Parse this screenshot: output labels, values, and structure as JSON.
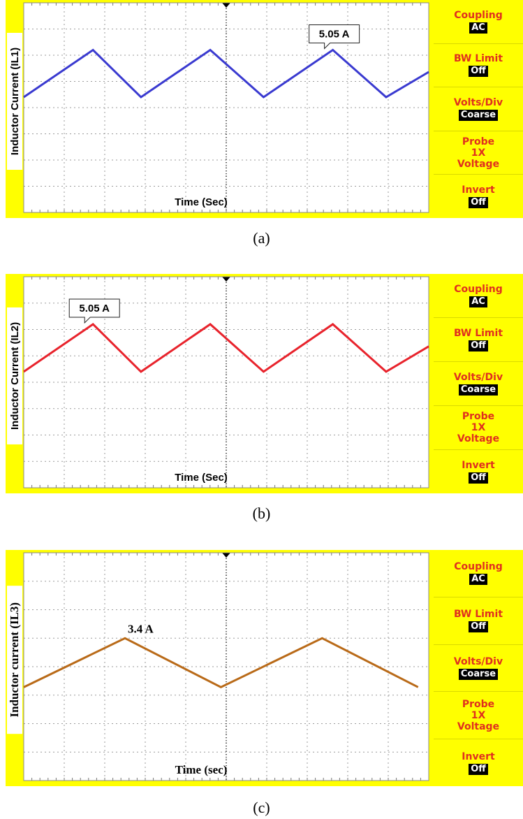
{
  "menu": {
    "coupling_label": "Coupling",
    "coupling_value": "AC",
    "bw_label": "BW Limit",
    "bw_value": "Off",
    "volts_label": "Volts/Div",
    "volts_value": "Coarse",
    "probe_label": "Probe",
    "probe_value": "1X",
    "probe_type": "Voltage",
    "invert_label": "Invert",
    "invert_value": "Off"
  },
  "chart_data": [
    {
      "type": "line",
      "panel": "a",
      "caption": "(a)",
      "ylabel": "Inductor Current (IL1)",
      "xlabel": "Time (Sec)",
      "annotation": "5.05 A",
      "color": "#3a3ad0",
      "x": [
        0,
        1.3,
        2.2,
        3.5,
        4.5,
        5.8,
        6.8,
        7.6
      ],
      "y": [
        5.5,
        7.75,
        5.5,
        7.75,
        5.5,
        7.75,
        5.5,
        6.7
      ],
      "xlim": [
        0,
        10
      ],
      "ylim": [
        0,
        10
      ],
      "grid": true
    },
    {
      "type": "line",
      "panel": "b",
      "caption": "(b)",
      "ylabel": "Inductor Current (IL2)",
      "xlabel": "Time (Sec)",
      "annotation": "5.05 A",
      "color": "#e8232c",
      "x": [
        0,
        1.3,
        2.2,
        3.5,
        4.5,
        5.8,
        6.8,
        7.6
      ],
      "y": [
        5.5,
        7.75,
        5.5,
        7.75,
        5.5,
        7.75,
        5.5,
        6.7
      ],
      "xlim": [
        0,
        10
      ],
      "ylim": [
        0,
        10
      ],
      "grid": true
    },
    {
      "type": "line",
      "panel": "c",
      "caption": "(c)",
      "ylabel": "Inductor current (IL3)",
      "xlabel": "Time (sec)",
      "annotation": "3.4 A",
      "color": "#b96a18",
      "x": [
        0,
        1.9,
        3.7,
        5.6,
        7.4
      ],
      "y": [
        4.1,
        6.25,
        4.1,
        6.25,
        4.1
      ],
      "xlim": [
        0,
        10
      ],
      "ylim": [
        0,
        10
      ],
      "grid": true
    }
  ]
}
